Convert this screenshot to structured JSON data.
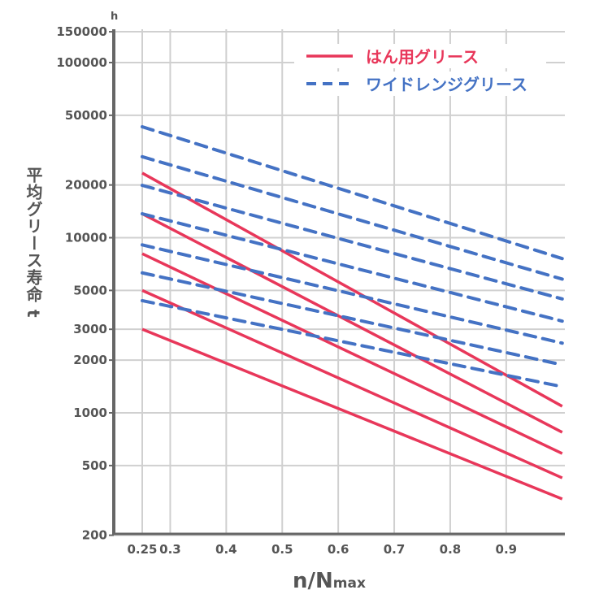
{
  "chart_data": {
    "type": "line",
    "title": "",
    "xlabel": "n/N",
    "xlabel_subscript": "max",
    "ylabel": "平均グリース寿命 t",
    "yunit": "h",
    "xlim": [
      0.2,
      1.0
    ],
    "ylim": [
      200,
      150000
    ],
    "yscale": "log",
    "grid": true,
    "legend_position": "top-right",
    "xticks": [
      0.25,
      0.3,
      0.4,
      0.5,
      0.6,
      0.7,
      0.8,
      0.9
    ],
    "xtick_labels": [
      "0.25",
      "0.3",
      "0.4",
      "0.5",
      "0.6",
      "0.7",
      "0.8",
      "0.9"
    ],
    "yticks": [
      150000,
      100000,
      50000,
      20000,
      10000,
      5000,
      3000,
      2000,
      1000,
      500,
      200
    ],
    "ytick_labels": [
      "150000",
      "100000",
      "50000",
      "20000",
      "10000",
      "5000",
      "3000",
      "2000",
      "1000",
      "500",
      "200"
    ],
    "legend": [
      {
        "label": "はん用グリース",
        "color": "#e8375a",
        "style": "solid"
      },
      {
        "label": "ワイドレンジグリース",
        "color": "#4472c4",
        "style": "dashed"
      }
    ],
    "series": [
      {
        "group": "はん用グリース",
        "x": [
          0.25,
          1.0
        ],
        "y": [
          23400,
          1090
        ]
      },
      {
        "group": "はん用グリース",
        "x": [
          0.25,
          1.0
        ],
        "y": [
          13700,
          774
        ]
      },
      {
        "group": "はん用グリース",
        "x": [
          0.25,
          1.0
        ],
        "y": [
          8100,
          586
        ]
      },
      {
        "group": "はん用グリース",
        "x": [
          0.25,
          1.0
        ],
        "y": [
          5000,
          425
        ]
      },
      {
        "group": "はん用グリース",
        "x": [
          0.25,
          1.0
        ],
        "y": [
          3000,
          322
        ]
      },
      {
        "group": "ワイドレンジグリース",
        "x": [
          0.25,
          1.0
        ],
        "y": [
          43000,
          7600
        ]
      },
      {
        "group": "ワイドレンジグリース",
        "x": [
          0.25,
          1.0
        ],
        "y": [
          29000,
          5800
        ]
      },
      {
        "group": "ワイドレンジグリース",
        "x": [
          0.25,
          1.0
        ],
        "y": [
          19900,
          4470
        ]
      },
      {
        "group": "ワイドレンジグリース",
        "x": [
          0.25,
          1.0
        ],
        "y": [
          13700,
          3340
        ]
      },
      {
        "group": "ワイドレンジグリース",
        "x": [
          0.25,
          1.0
        ],
        "y": [
          9100,
          2500
        ]
      },
      {
        "group": "ワイドレンジグリース",
        "x": [
          0.25,
          1.0
        ],
        "y": [
          6300,
          1880
        ]
      },
      {
        "group": "ワイドレンジグリース",
        "x": [
          0.25,
          1.0
        ],
        "y": [
          4370,
          1410
        ]
      }
    ]
  }
}
